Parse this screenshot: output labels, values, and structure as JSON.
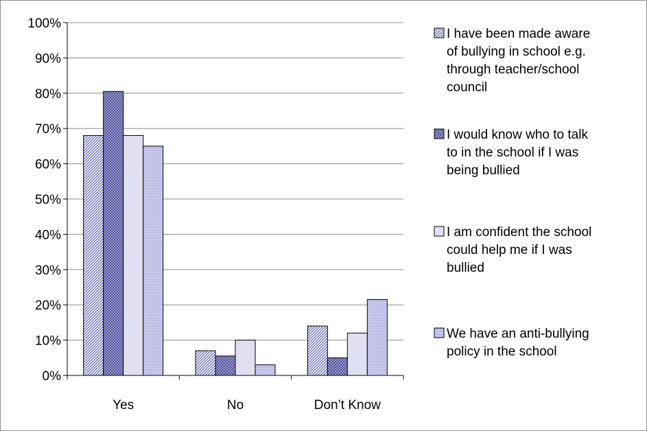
{
  "chart_data": {
    "type": "bar",
    "title": "",
    "xlabel": "",
    "ylabel": "",
    "categories": [
      "Yes",
      "No",
      "Don’t Know"
    ],
    "ylim": [
      0,
      100
    ],
    "yticks": [
      "0%",
      "10%",
      "20%",
      "30%",
      "40%",
      "50%",
      "60%",
      "70%",
      "80%",
      "90%",
      "100%"
    ],
    "grid": true,
    "legend_position": "right",
    "series": [
      {
        "name": "I have been made aware of bullying in school e.g. through teacher/school council",
        "legend_lines": [
          "I have been made aware",
          "of bullying in school e.g.",
          "through teacher/school",
          "council"
        ],
        "values": [
          68,
          7,
          14
        ],
        "color": "#b8b8e0"
      },
      {
        "name": "I would know who to talk to in the school if I was being bullied",
        "legend_lines": [
          "I would know who to talk",
          "to in the school if I was",
          "being bullied"
        ],
        "values": [
          80.5,
          5.5,
          5
        ],
        "color": "#6a6ab0"
      },
      {
        "name": "I am confident the school could help me if I was bullied",
        "legend_lines": [
          "I am confident the school",
          "could help me if I was",
          "bullied"
        ],
        "values": [
          68,
          10,
          12
        ],
        "color": "#e4e4f4"
      },
      {
        "name": "We have an anti-bullying policy in the school",
        "legend_lines": [
          "We have an anti-bullying",
          "policy in the school"
        ],
        "values": [
          65,
          3,
          21.5
        ],
        "color": "#c6c6ea"
      }
    ]
  }
}
